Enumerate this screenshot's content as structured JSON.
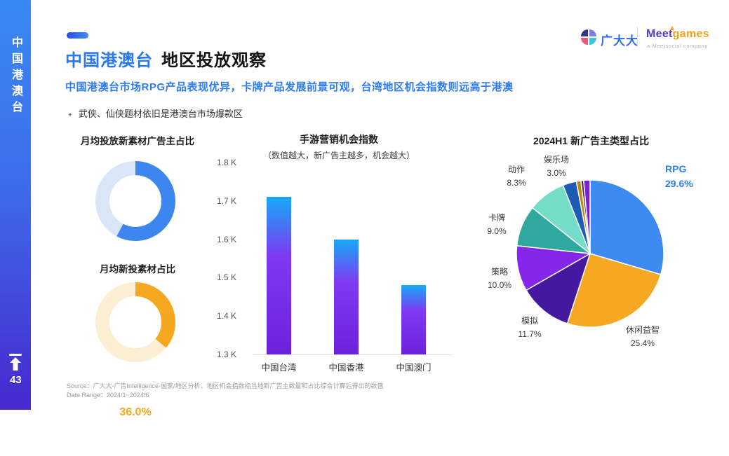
{
  "sidebar": {
    "vertical_label": "中国港澳台",
    "page_number": "43"
  },
  "header": {
    "title_highlight": "中国港澳台",
    "title_rest": "地区投放观察",
    "subtitle": "中国港澳台市场RPG产品表现优异，卡牌产品发展前景可观，台湾地区机会指数则远高于港澳",
    "bullet": "武侠、仙侠题材依旧是港澳台市场爆款区"
  },
  "logos": {
    "guangdada": "广大大",
    "meet": "Mee",
    "meet_t": "t",
    "games": "games",
    "meet_sub": "a Meetsocial company"
  },
  "footer": {
    "source": "Source：广大大-广告Intelligence-国家/地区分析，地区机会指数指当地新广告主数量和占比综合计算后得出的数值",
    "date_range": "Date Range：2024/1~2024/6"
  },
  "chart_data": [
    {
      "type": "pie",
      "subtype": "donut",
      "title": "月均投放新素材广告主占比",
      "value": 57.7,
      "label": "57.7%",
      "color": "#3e86ef",
      "track_color": "#d9e6f8"
    },
    {
      "type": "pie",
      "subtype": "donut",
      "title": "月均新投素材占比",
      "value": 36.0,
      "label": "36.0%",
      "color": "#f5a71f",
      "track_color": "#fbeed2"
    },
    {
      "type": "bar",
      "title": "手游营销机会指数",
      "subtitle": "（数值越大，新广告主越多，机会越大）",
      "categories": [
        "中国台湾",
        "中国香港",
        "中国澳门"
      ],
      "values": [
        1710,
        1600,
        1480
      ],
      "ylim": [
        1300,
        1800
      ],
      "yticks": [
        "1.8 K",
        "1.7 K",
        "1.6 K",
        "1.5 K",
        "1.4 K",
        "1.3 K"
      ],
      "grid": false,
      "bar_gradient": [
        "#16aaf8",
        "#8038f1",
        "#6c22d8"
      ]
    },
    {
      "type": "pie",
      "title": "2024H1 新广告主类型占比",
      "start_angle_deg": 0,
      "direction": "clockwise",
      "slices": [
        {
          "label": "RPG",
          "pct": "29.6%",
          "value": 29.6,
          "color": "#3d8bf0",
          "highlight": true
        },
        {
          "label": "休闲益智",
          "pct": "25.4%",
          "value": 25.4,
          "color": "#f6a723"
        },
        {
          "label": "模拟",
          "pct": "11.7%",
          "value": 11.7,
          "color": "#45199f"
        },
        {
          "label": "策略",
          "pct": "10.0%",
          "value": 10.0,
          "color": "#8427e8"
        },
        {
          "label": "卡牌",
          "pct": "9.0%",
          "value": 9.0,
          "color": "#2fa89f"
        },
        {
          "label": "动作",
          "pct": "8.3%",
          "value": 8.3,
          "color": "#74ddc8"
        },
        {
          "label": "娱乐场",
          "pct": "3.0%",
          "value": 3.0,
          "color": "#1d5cb5"
        },
        {
          "label": "",
          "pct": "",
          "value": 1.0,
          "color": "#bd8a0f"
        },
        {
          "label": "",
          "pct": "",
          "value": 0.6,
          "color": "#5d1a5d"
        },
        {
          "label": "",
          "pct": "",
          "value": 1.4,
          "color": "#7d1fd6"
        }
      ]
    }
  ]
}
